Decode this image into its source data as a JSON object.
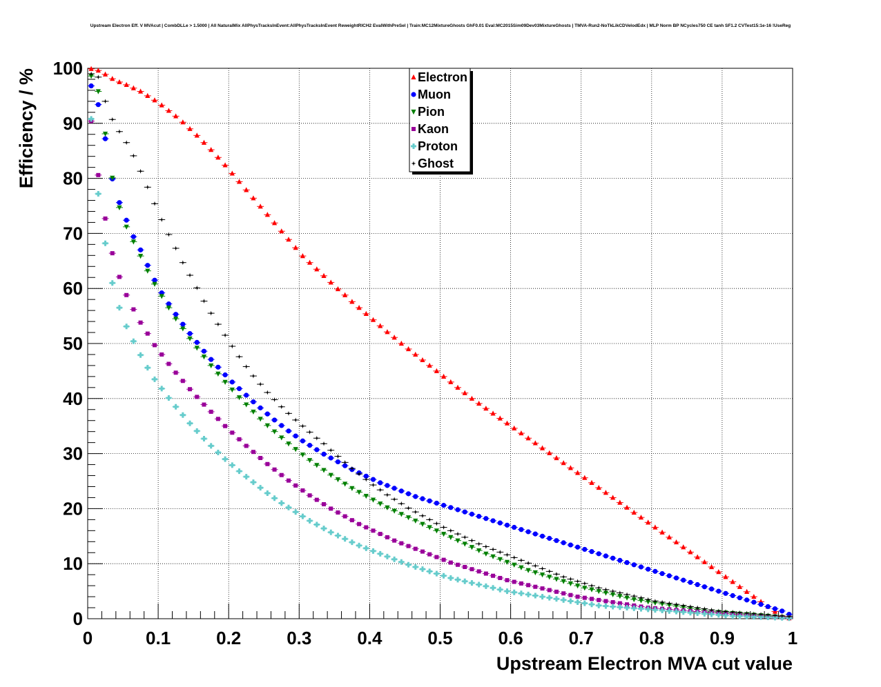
{
  "chart_data": {
    "type": "scatter",
    "title": "Upstream Electron Eff. V MVAcut | CombDLLe > 1.5000 | All NaturalMix AllPhysTracksInEvent:AllPhysTracksInEvent ReweightRICH2 EvalWithPreSel | Train:MC12MixtureGhosts GhF0.01 Eval:MC2015Sim09Dev03MixtureGhosts | TMVA-Run2-NoTkLikCDVelodEdx | MLP Norm BP NCycles750 CE tanh SF1.2 CVTest15:1e-16 !UseReg",
    "xlabel": "Upstream Electron MVA cut value",
    "ylabel": "Efficiency / %",
    "xlim": [
      0,
      1
    ],
    "ylim": [
      0,
      100
    ],
    "xticks": [
      "0",
      "0.1",
      "0.2",
      "0.3",
      "0.4",
      "0.5",
      "0.6",
      "0.7",
      "0.8",
      "0.9",
      "1"
    ],
    "yticks": [
      "0",
      "10",
      "20",
      "30",
      "40",
      "50",
      "60",
      "70",
      "80",
      "90",
      "100"
    ],
    "grid": true,
    "legend_position": "top-center",
    "x": [
      0.005,
      0.015,
      0.025,
      0.035,
      0.045,
      0.055,
      0.065,
      0.075,
      0.085,
      0.095,
      0.105,
      0.115,
      0.125,
      0.135,
      0.145,
      0.155,
      0.165,
      0.175,
      0.185,
      0.195,
      0.205,
      0.215,
      0.225,
      0.235,
      0.245,
      0.255,
      0.265,
      0.275,
      0.285,
      0.295,
      0.305,
      0.315,
      0.325,
      0.335,
      0.345,
      0.355,
      0.365,
      0.375,
      0.385,
      0.395,
      0.405,
      0.415,
      0.425,
      0.435,
      0.445,
      0.455,
      0.465,
      0.475,
      0.485,
      0.495,
      0.505,
      0.515,
      0.525,
      0.535,
      0.545,
      0.555,
      0.565,
      0.575,
      0.585,
      0.595,
      0.605,
      0.615,
      0.625,
      0.635,
      0.645,
      0.655,
      0.665,
      0.675,
      0.685,
      0.695,
      0.705,
      0.715,
      0.725,
      0.735,
      0.745,
      0.755,
      0.765,
      0.775,
      0.785,
      0.795,
      0.805,
      0.815,
      0.825,
      0.835,
      0.845,
      0.855,
      0.865,
      0.875,
      0.885,
      0.895,
      0.905,
      0.915,
      0.925,
      0.935,
      0.945,
      0.955,
      0.965,
      0.975,
      0.985,
      0.995
    ],
    "series": [
      {
        "name": "Electron",
        "color": "#ff0000",
        "marker": "triangle-up",
        "values": [
          99.9,
          99.6,
          98.9,
          98.1,
          97.5,
          97.0,
          96.4,
          95.8,
          95.0,
          94.2,
          93.3,
          92.3,
          91.3,
          90.2,
          89.0,
          87.8,
          86.5,
          85.2,
          83.8,
          82.4,
          80.9,
          79.4,
          77.9,
          76.4,
          74.9,
          73.4,
          71.9,
          70.4,
          68.9,
          67.4,
          65.9,
          64.7,
          63.5,
          62.3,
          61.1,
          59.9,
          58.8,
          57.6,
          56.5,
          55.4,
          54.3,
          53.2,
          52.1,
          51.1,
          50.0,
          49.0,
          48.0,
          47.0,
          46.0,
          45.0,
          44.0,
          43.0,
          42.0,
          41.0,
          40.0,
          39.1,
          38.2,
          37.3,
          36.4,
          35.5,
          34.6,
          33.7,
          32.8,
          31.9,
          31.0,
          30.1,
          29.2,
          28.3,
          27.4,
          26.5,
          25.6,
          24.7,
          23.8,
          22.9,
          22.0,
          21.1,
          20.2,
          19.3,
          18.4,
          17.5,
          16.6,
          15.7,
          14.8,
          13.9,
          13.0,
          12.1,
          11.2,
          10.3,
          9.4,
          8.5,
          7.6,
          6.7,
          5.8,
          4.9,
          4.0,
          3.1,
          2.2,
          1.3,
          0.4,
          0.1
        ]
      },
      {
        "name": "Muon",
        "color": "#0000ff",
        "marker": "circle",
        "values": [
          96.8,
          93.4,
          87.2,
          79.9,
          75.6,
          72.4,
          69.4,
          67.0,
          64.2,
          61.5,
          59.2,
          57.2,
          55.3,
          53.5,
          51.8,
          50.2,
          48.6,
          47.1,
          45.7,
          44.3,
          43.0,
          41.8,
          40.6,
          39.4,
          38.3,
          37.2,
          36.1,
          35.1,
          34.1,
          33.2,
          32.3,
          31.5,
          30.7,
          29.9,
          29.2,
          28.5,
          27.8,
          27.1,
          26.5,
          25.9,
          25.3,
          24.7,
          24.2,
          23.7,
          23.2,
          22.7,
          22.2,
          21.8,
          21.4,
          21.0,
          20.6,
          20.2,
          19.8,
          19.4,
          19.0,
          18.6,
          18.2,
          17.8,
          17.4,
          17.0,
          16.6,
          16.2,
          15.8,
          15.4,
          15.0,
          14.6,
          14.2,
          13.8,
          13.4,
          13.0,
          12.6,
          12.2,
          11.8,
          11.4,
          11.0,
          10.6,
          10.2,
          9.8,
          9.4,
          9.0,
          8.6,
          8.2,
          7.8,
          7.4,
          7.0,
          6.6,
          6.2,
          5.8,
          5.4,
          5.0,
          4.6,
          4.2,
          3.8,
          3.4,
          3.0,
          2.6,
          2.2,
          1.8,
          1.4,
          0.8
        ]
      },
      {
        "name": "Pion",
        "color": "#008000",
        "marker": "triangle-down",
        "values": [
          98.6,
          95.8,
          88.1,
          80.1,
          74.7,
          71.2,
          68.5,
          65.9,
          63.2,
          60.8,
          58.6,
          56.5,
          54.5,
          52.7,
          50.9,
          49.2,
          47.6,
          46.0,
          44.5,
          43.0,
          41.6,
          40.2,
          38.9,
          37.6,
          36.3,
          35.1,
          34.0,
          32.9,
          31.8,
          30.8,
          29.8,
          28.8,
          27.9,
          27.0,
          26.1,
          25.3,
          24.5,
          23.7,
          23.0,
          22.3,
          21.6,
          20.9,
          20.2,
          19.6,
          19.0,
          18.4,
          17.8,
          17.2,
          16.6,
          16.0,
          15.4,
          14.8,
          14.2,
          13.6,
          13.0,
          12.4,
          11.8,
          11.3,
          10.8,
          10.3,
          9.8,
          9.3,
          8.8,
          8.4,
          8.0,
          7.6,
          7.2,
          6.8,
          6.4,
          6.0,
          5.6,
          5.3,
          5.0,
          4.7,
          4.4,
          4.1,
          3.8,
          3.5,
          3.3,
          3.1,
          2.9,
          2.7,
          2.5,
          2.3,
          2.1,
          1.9,
          1.7,
          1.5,
          1.3,
          1.2,
          1.1,
          1.0,
          0.9,
          0.8,
          0.7,
          0.6,
          0.5,
          0.4,
          0.3,
          0.2
        ]
      },
      {
        "name": "Kaon",
        "color": "#990099",
        "marker": "square",
        "values": [
          90.4,
          80.6,
          72.7,
          66.4,
          62.1,
          58.8,
          56.2,
          53.8,
          51.8,
          49.7,
          48.0,
          46.3,
          44.7,
          43.2,
          41.7,
          40.3,
          38.9,
          37.6,
          36.3,
          35.0,
          33.8,
          32.6,
          31.4,
          30.3,
          29.2,
          28.1,
          27.1,
          26.1,
          25.1,
          24.2,
          23.3,
          22.4,
          21.6,
          20.8,
          20.0,
          19.3,
          18.6,
          17.9,
          17.2,
          16.6,
          16.0,
          15.4,
          14.8,
          14.2,
          13.7,
          13.2,
          12.7,
          12.2,
          11.7,
          11.2,
          10.7,
          10.2,
          9.8,
          9.4,
          9.0,
          8.6,
          8.2,
          7.8,
          7.4,
          7.0,
          6.7,
          6.4,
          6.1,
          5.8,
          5.5,
          5.2,
          4.9,
          4.6,
          4.3,
          4.0,
          3.8,
          3.6,
          3.4,
          3.2,
          3.0,
          2.8,
          2.6,
          2.4,
          2.2,
          2.0,
          1.9,
          1.8,
          1.7,
          1.6,
          1.5,
          1.4,
          1.3,
          1.2,
          1.1,
          1.0,
          0.9,
          0.8,
          0.7,
          0.6,
          0.5,
          0.4,
          0.35,
          0.3,
          0.25,
          0.2
        ]
      },
      {
        "name": "Proton",
        "color": "#66cccc",
        "marker": "cross",
        "values": [
          90.8,
          77.2,
          68.2,
          61.0,
          56.5,
          53.1,
          50.4,
          47.9,
          45.6,
          43.5,
          41.8,
          40.1,
          38.5,
          37.0,
          35.5,
          34.1,
          32.7,
          31.4,
          30.2,
          29.0,
          27.9,
          26.8,
          25.8,
          24.8,
          23.8,
          22.8,
          21.9,
          21.0,
          20.2,
          19.4,
          18.6,
          17.8,
          17.1,
          16.4,
          15.7,
          15.1,
          14.5,
          13.9,
          13.3,
          12.8,
          12.3,
          11.8,
          11.3,
          10.8,
          10.3,
          9.8,
          9.4,
          9.0,
          8.6,
          8.2,
          7.8,
          7.4,
          7.1,
          6.8,
          6.5,
          6.2,
          5.9,
          5.6,
          5.3,
          5.0,
          4.8,
          4.6,
          4.4,
          4.2,
          4.0,
          3.8,
          3.6,
          3.4,
          3.2,
          3.0,
          2.8,
          2.6,
          2.4,
          2.3,
          2.2,
          2.1,
          2.0,
          1.9,
          1.8,
          1.7,
          1.6,
          1.5,
          1.4,
          1.3,
          1.2,
          1.1,
          1.0,
          0.9,
          0.8,
          0.7,
          0.6,
          0.5,
          0.45,
          0.4,
          0.35,
          0.3,
          0.25,
          0.2,
          0.15,
          0.1
        ]
      },
      {
        "name": "Ghost",
        "color": "#000000",
        "marker": "star",
        "values": [
          99.0,
          98.4,
          94.0,
          90.7,
          88.5,
          86.5,
          84.1,
          81.3,
          78.4,
          75.4,
          72.5,
          69.8,
          67.3,
          64.7,
          62.4,
          60.1,
          57.7,
          55.5,
          53.5,
          51.5,
          49.5,
          47.6,
          45.8,
          44.1,
          42.6,
          41.1,
          39.8,
          38.5,
          37.3,
          36.1,
          35.0,
          33.9,
          32.8,
          31.8,
          30.6,
          29.5,
          28.4,
          27.3,
          26.3,
          25.3,
          24.3,
          23.4,
          22.5,
          21.7,
          20.9,
          20.1,
          19.4,
          18.7,
          18.0,
          17.3,
          16.6,
          16.0,
          15.4,
          14.8,
          14.2,
          13.6,
          13.1,
          12.6,
          12.1,
          11.6,
          11.1,
          10.6,
          10.1,
          9.6,
          9.1,
          8.6,
          8.1,
          7.6,
          7.2,
          6.8,
          6.4,
          6.0,
          5.6,
          5.3,
          5.0,
          4.7,
          4.4,
          4.1,
          3.8,
          3.5,
          3.2,
          3.0,
          2.8,
          2.6,
          2.4,
          2.2,
          2.0,
          1.8,
          1.6,
          1.4,
          1.3,
          1.2,
          1.1,
          1.0,
          0.9,
          0.8,
          0.7,
          0.6,
          0.5,
          0.4
        ]
      }
    ]
  }
}
